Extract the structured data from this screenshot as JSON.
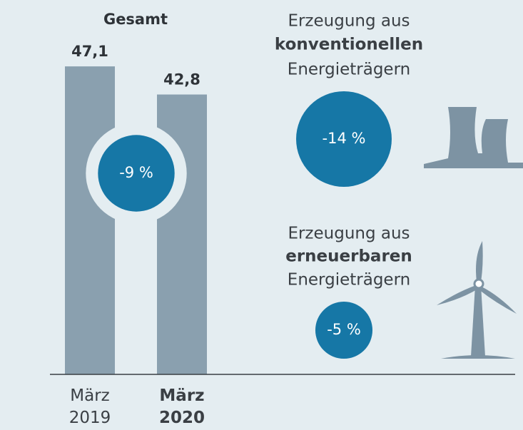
{
  "chart_data": {
    "type": "bar",
    "title": "Gesamt",
    "categories": [
      "März 2019",
      "März 2020"
    ],
    "values": [
      47.1,
      42.8
    ],
    "value_labels": [
      "47,1",
      "42,8"
    ],
    "color": "#8aa0af",
    "total_change": {
      "value": -9,
      "label": "-9 %"
    },
    "segments": [
      {
        "lines": [
          "Erzeugung aus",
          "konventionellen",
          "Energieträgern"
        ],
        "value": -14,
        "label": "-14 %"
      },
      {
        "lines": [
          "Erzeugung aus",
          "erneuerbaren",
          "Energieträgern"
        ],
        "value": -5,
        "label": "-5 %"
      }
    ],
    "circle_color": "#1677a6"
  }
}
